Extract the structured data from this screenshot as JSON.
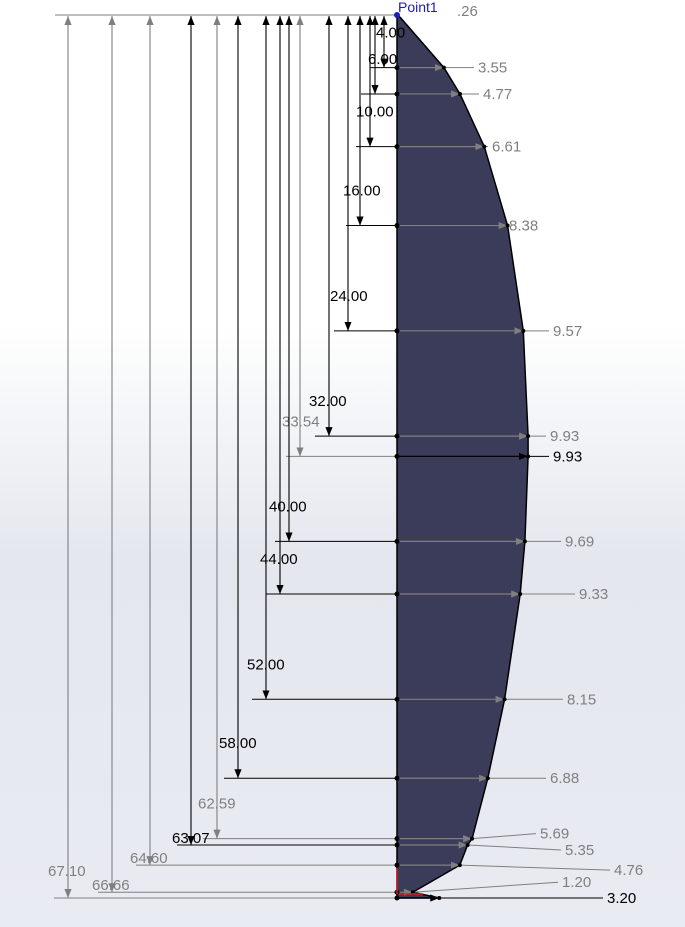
{
  "sketch": {
    "point_label": "Point1",
    "top_value": ".26",
    "profile_fill": "#3a3c5a",
    "dim_black": "#000000",
    "dim_gray": "#7f7f7f",
    "point_color": "#1b1bbf",
    "origin_color": "#d62020",
    "vertical_dims": [
      {
        "value": 4.0,
        "label": "4.00",
        "color": "black"
      },
      {
        "value": 6.0,
        "label": "6.00",
        "color": "black"
      },
      {
        "value": 10.0,
        "label": "10.00",
        "color": "black"
      },
      {
        "value": 16.0,
        "label": "16.00",
        "color": "black"
      },
      {
        "value": 24.0,
        "label": "24.00",
        "color": "black"
      },
      {
        "value": 32.0,
        "label": "32.00",
        "color": "black"
      },
      {
        "value": 33.54,
        "label": "33.54",
        "color": "gray"
      },
      {
        "value": 40.0,
        "label": "40.00",
        "color": "black"
      },
      {
        "value": 44.0,
        "label": "44.00",
        "color": "black"
      },
      {
        "value": 52.0,
        "label": "52.00",
        "color": "black"
      },
      {
        "value": 58.0,
        "label": "58.00",
        "color": "black"
      },
      {
        "value": 62.59,
        "label": "62.59",
        "color": "gray"
      },
      {
        "value": 63.07,
        "label": "63.07",
        "color": "black"
      },
      {
        "value": 64.6,
        "label": "64.60",
        "color": "gray"
      },
      {
        "value": 66.66,
        "label": "66.66",
        "color": "gray"
      },
      {
        "value": 67.1,
        "label": "67.10",
        "color": "gray"
      }
    ],
    "half_widths": [
      {
        "at": 4.0,
        "value": 3.55,
        "label": "3.55",
        "color": "gray"
      },
      {
        "at": 6.0,
        "value": 4.77,
        "label": "4.77",
        "color": "gray"
      },
      {
        "at": 10.0,
        "value": 6.61,
        "label": "6.61",
        "color": "gray"
      },
      {
        "at": 16.0,
        "value": 8.38,
        "label": "8.38",
        "color": "gray"
      },
      {
        "at": 24.0,
        "value": 9.57,
        "label": "9.57",
        "color": "gray"
      },
      {
        "at": 32.0,
        "value": 9.93,
        "label": "9.93",
        "color": "gray"
      },
      {
        "at": 33.54,
        "value": 9.93,
        "label": "9.93",
        "color": "black"
      },
      {
        "at": 40.0,
        "value": 9.69,
        "label": "9.69",
        "color": "gray"
      },
      {
        "at": 44.0,
        "value": 9.33,
        "label": "9.33",
        "color": "gray"
      },
      {
        "at": 52.0,
        "value": 8.15,
        "label": "8.15",
        "color": "gray"
      },
      {
        "at": 58.0,
        "value": 6.88,
        "label": "6.88",
        "color": "gray"
      },
      {
        "at": 62.59,
        "value": 5.69,
        "label": "5.69",
        "color": "gray"
      },
      {
        "at": 63.07,
        "value": 5.35,
        "label": "5.35",
        "color": "gray"
      },
      {
        "at": 64.6,
        "value": 4.76,
        "label": "4.76",
        "color": "gray"
      },
      {
        "at": 66.66,
        "value": 1.2,
        "label": "1.20",
        "color": "gray"
      },
      {
        "at": 67.1,
        "value": 3.2,
        "label": "3.20",
        "color": "black"
      }
    ]
  }
}
